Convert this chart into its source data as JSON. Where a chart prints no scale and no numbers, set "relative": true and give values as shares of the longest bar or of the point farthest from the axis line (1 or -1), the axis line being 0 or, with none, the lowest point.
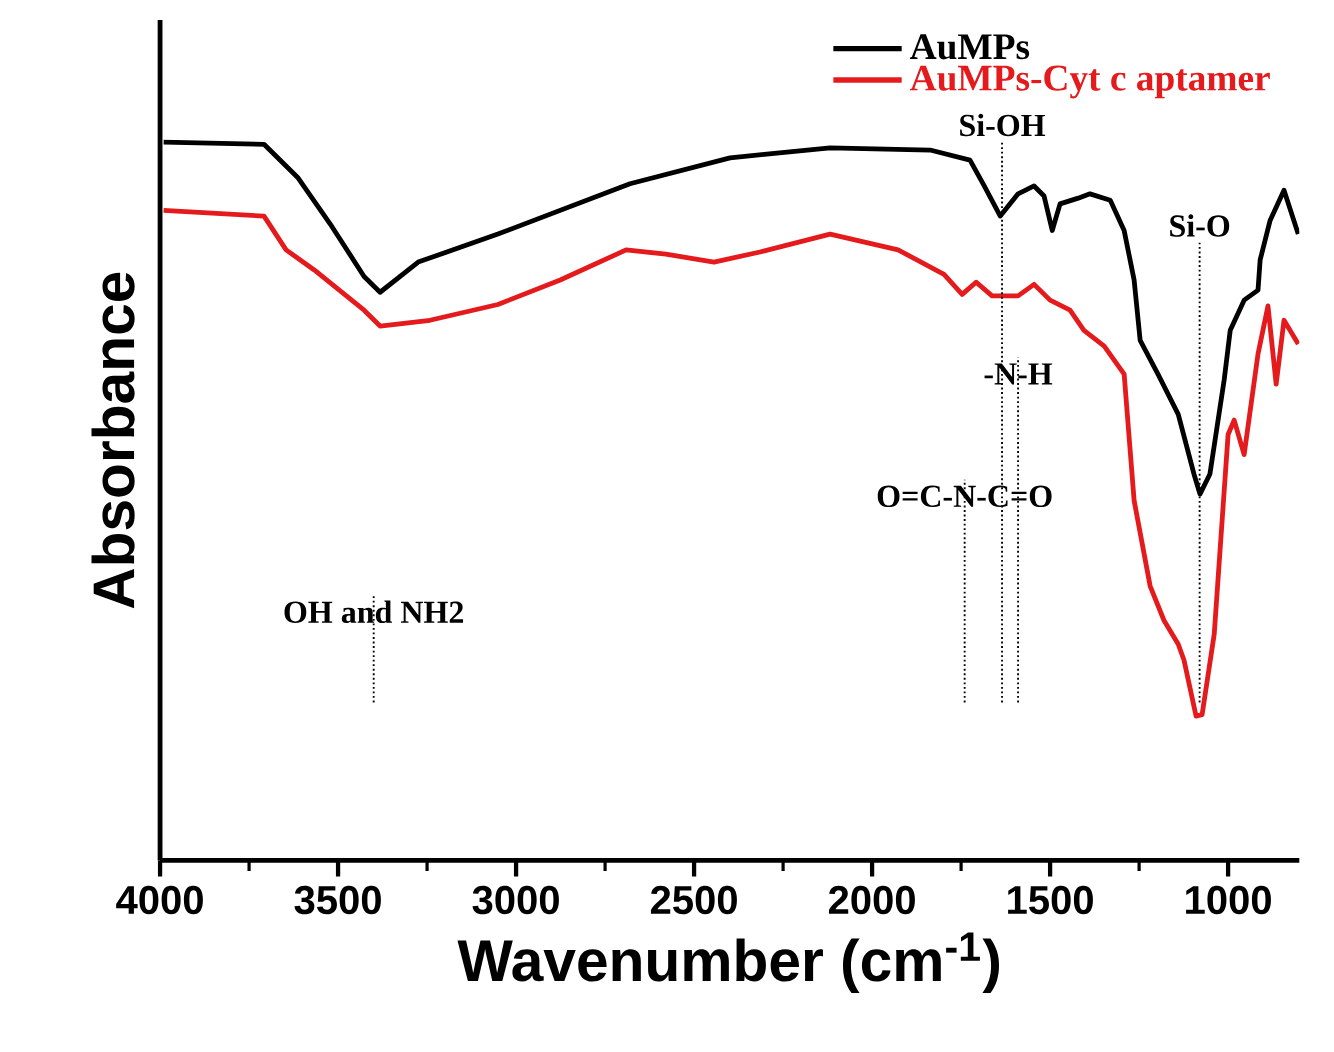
{
  "chart_data": {
    "type": "line",
    "relative": true,
    "xlabel": "Wavenumber (cm$^{-1}$)",
    "ylabel": "Absorbance",
    "xlim": [
      4000,
      800
    ],
    "xticks": [
      4000,
      3500,
      3000,
      2500,
      2000,
      1500,
      1000
    ],
    "legend": "top right",
    "tick_labels": "x",
    "series": [
      {
        "name": "AuMPs",
        "color": "#000000",
        "x": [
          3990,
          3708,
          3612,
          3522,
          3427,
          3382,
          3275,
          3051,
          2680,
          2399,
          2303,
          2118,
          1837,
          1725,
          1685,
          1640,
          1590,
          1545,
          1517,
          1494,
          1472,
          1421,
          1388,
          1331,
          1292,
          1264,
          1247,
          1197,
          1140,
          1096,
          1079,
          1051,
          1011,
          994,
          955,
          916,
          910,
          882,
          843,
          803
        ],
        "values": [
          1.0,
          0.997,
          0.95,
          0.886,
          0.813,
          0.791,
          0.833,
          0.872,
          0.942,
          0.978,
          0.983,
          0.992,
          0.989,
          0.975,
          0.939,
          0.897,
          0.928,
          0.939,
          0.925,
          0.877,
          0.914,
          0.922,
          0.928,
          0.919,
          0.877,
          0.808,
          0.724,
          0.677,
          0.621,
          0.538,
          0.51,
          0.538,
          0.669,
          0.738,
          0.78,
          0.794,
          0.836,
          0.891,
          0.933,
          0.872
        ]
      },
      {
        "name": "AuMPs-Cyt c aptamer",
        "color": "#e41a1c",
        "x": [
          3990,
          3708,
          3646,
          3567,
          3427,
          3382,
          3242,
          3051,
          2876,
          2691,
          2579,
          2444,
          2315,
          2118,
          1927,
          1798,
          1747,
          1708,
          1663,
          1590,
          1545,
          1500,
          1444,
          1405,
          1348,
          1292,
          1264,
          1219,
          1180,
          1140,
          1124,
          1090,
          1073,
          1039,
          1000,
          983,
          955,
          916,
          888,
          865,
          843,
          803
        ],
        "values": [
          0.905,
          0.897,
          0.85,
          0.822,
          0.766,
          0.744,
          0.752,
          0.774,
          0.808,
          0.85,
          0.844,
          0.833,
          0.847,
          0.872,
          0.85,
          0.816,
          0.788,
          0.805,
          0.786,
          0.786,
          0.802,
          0.78,
          0.766,
          0.738,
          0.716,
          0.677,
          0.501,
          0.382,
          0.334,
          0.301,
          0.279,
          0.201,
          0.203,
          0.315,
          0.593,
          0.613,
          0.565,
          0.705,
          0.772,
          0.663,
          0.752,
          0.719
        ]
      }
    ],
    "ref_lines": [
      {
        "axis": "x",
        "value": 3400,
        "label": "OH and NH2",
        "line_style": "dotted"
      },
      {
        "axis": "x",
        "value": 1635,
        "label": "Si-OH",
        "line_style": "dotted"
      },
      {
        "axis": "x",
        "value": 1590,
        "label": "-N-H",
        "line_style": "dotted"
      },
      {
        "axis": "x",
        "value": 1740,
        "label": "O=C-N-C=O",
        "line_style": "dotted"
      },
      {
        "axis": "x",
        "value": 1080,
        "label": "Si-O",
        "line_style": "dotted"
      }
    ]
  }
}
